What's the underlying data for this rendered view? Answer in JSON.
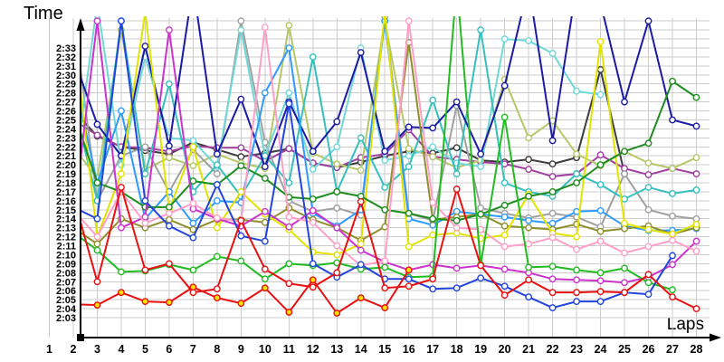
{
  "page": {
    "background": "#ffffff",
    "axis_color": "#000000",
    "grid_color": "#cccccc"
  },
  "chart_data": {
    "type": "line",
    "title": "",
    "xlabel": "Laps",
    "ylabel": "Time",
    "legend": "none",
    "grid": true,
    "values_unit": "seconds",
    "y_axis": {
      "min_label": "2:03",
      "max_label": "2:33",
      "min_seconds": 123,
      "max_seconds": 153,
      "tick_step_seconds": 1
    },
    "x_axis": {
      "min": 1,
      "max": 28,
      "tick_step": 1
    },
    "offscreen_threshold": 156.6,
    "y_ticks": [
      "2:03",
      "2:04",
      "2:05",
      "2:06",
      "2:07",
      "2:08",
      "2:09",
      "2:10",
      "2:11",
      "2:12",
      "2:13",
      "2:14",
      "2:15",
      "2:16",
      "2:17",
      "2:18",
      "2:19",
      "2:20",
      "2:21",
      "2:22",
      "2:23",
      "2:24",
      "2:25",
      "2:26",
      "2:27",
      "2:28",
      "2:29",
      "2:30",
      "2:31",
      "2:32",
      "2:33"
    ],
    "x_ticks": [
      "1",
      "2",
      "3",
      "4",
      "5",
      "6",
      "7",
      "8",
      "9",
      "10",
      "11",
      "12",
      "13",
      "14",
      "15",
      "16",
      "17",
      "18",
      "19",
      "20",
      "21",
      "22",
      "23",
      "24",
      "25",
      "26",
      "27",
      "28"
    ],
    "series": [
      {
        "name": "dark-gray",
        "color": "#3c3c3c",
        "marker_fill": "#ffffff",
        "values": [
          158,
          146,
          143.2,
          142,
          141.6,
          141.2,
          142.5,
          141.7,
          140.9,
          141.3,
          141.8,
          140.2,
          139.7,
          140.3,
          141.0,
          141.5,
          141.3,
          141.9,
          140.5,
          140.3,
          140.6,
          140.1,
          140.8,
          150.6,
          139.0
        ]
      },
      {
        "name": "purple",
        "color": "#a040a0",
        "marker_fill": "#ffffff",
        "values": [
          151,
          145,
          143.3,
          142,
          141.9,
          141.5,
          142.1,
          141.9,
          141.9,
          140.4,
          141.8,
          140.2,
          139.7,
          140.8,
          141.2,
          143.9,
          140.9,
          140.6,
          140.3,
          140.1,
          139.5,
          138.7,
          139.0,
          141.1,
          139.6,
          138.9,
          139.6,
          139.0
        ]
      },
      {
        "name": "khaki-green",
        "color": "#b5c767",
        "marker_fill": "#ffffff",
        "values": [
          136,
          142,
          138.5,
          155,
          139.5,
          140.8,
          139.9,
          141.2,
          140.2,
          139.6,
          155.5,
          141.3,
          140.1,
          139.4,
          156,
          141.8,
          140.9,
          139.7,
          140.5,
          149.5,
          143,
          144.9,
          141.2,
          139.9,
          141.5,
          140.2,
          139.6,
          140.8
        ]
      },
      {
        "name": "gray",
        "color": "#a0a0a0",
        "marker_fill": "#ffffff",
        "values": [
          142,
          157,
          136,
          141,
          142,
          137,
          141.7,
          139,
          156,
          142.5,
          136,
          134.8,
          135.2,
          134.4,
          156.5,
          134.6,
          133.8,
          146.6,
          135.2,
          134.6,
          134.1,
          134.6,
          134.2,
          133.1,
          139,
          135,
          134.3,
          134.0
        ]
      },
      {
        "name": "light-cyan",
        "color": "#6fd8d8",
        "marker_fill": "#ffffff",
        "values": [
          153.5,
          138,
          158,
          140,
          152,
          143,
          142.7,
          139.8,
          155,
          141,
          148,
          139.5,
          142,
          153,
          140.5,
          141,
          142,
          140.2,
          139.8,
          154,
          153.8,
          152.4,
          148.2,
          147.8
        ]
      },
      {
        "name": "cyan",
        "color": "#35bfbf",
        "marker_fill": "#ffffff",
        "values": [
          153,
          147,
          136,
          156,
          139,
          149,
          137,
          140,
          136.5,
          141,
          138,
          152,
          137,
          143,
          137.5,
          139.8,
          147.2,
          139,
          155,
          138,
          137,
          136.5,
          139,
          137.8,
          136.2,
          137.5,
          136.8,
          137.2
        ]
      },
      {
        "name": "navy-blue",
        "color": "#1a1aa6",
        "marker_fill": "#ffffff",
        "values": [
          160,
          152,
          144.5,
          141,
          153.2,
          142.1,
          160,
          141.2,
          147.3,
          139.8,
          147,
          141.5,
          144.8,
          152.5,
          141.5,
          144.2,
          144.1,
          147,
          141.2,
          148.8,
          160,
          142.7,
          160,
          158,
          147,
          156,
          145,
          144.3
        ]
      },
      {
        "name": "sky-blue",
        "color": "#2e9afe",
        "marker_fill": "#ffffff",
        "values": [
          146.4,
          150,
          138,
          146,
          134,
          137,
          133.5,
          136,
          135.8,
          148,
          153,
          134.6,
          133.2,
          135,
          156,
          134,
          133.3,
          134.8,
          134.5,
          134.2,
          133.8,
          133.5,
          134.8,
          134.9,
          133.2,
          132.7,
          132.7,
          132.9
        ]
      },
      {
        "name": "olive",
        "color": "#8f8f2e",
        "marker_fill": "#ffffff",
        "values": [
          135.5,
          133,
          131.2,
          134,
          133,
          133.9,
          132.8,
          133.9,
          133.9,
          133.6,
          135.2,
          133.9,
          133.0,
          131.6,
          133.1,
          153.6,
          133.9,
          134.2,
          134.5,
          133.2,
          133.0,
          132.8,
          133.4,
          132.6,
          132.9,
          133.2,
          132.3,
          133.0
        ]
      },
      {
        "name": "yellow",
        "color": "#e3e300",
        "marker_fill": "#ffffff",
        "values": [
          150,
          155,
          132,
          139,
          157,
          135,
          142,
          133,
          137,
          134.5,
          132.8,
          130.3,
          130.0,
          131.2,
          157,
          130.9,
          132.2,
          132.4,
          131.8,
          132.2,
          136.7,
          132.4,
          132.0,
          153.7,
          133.5,
          132.8,
          132.3,
          133.4
        ]
      },
      {
        "name": "dark-green",
        "color": "#1e8c1e",
        "marker_fill": "#ffffff",
        "values": [
          152,
          146,
          138,
          137,
          135.3,
          135.3,
          138.2,
          137.8,
          139.9,
          138.5,
          136.4,
          136.2,
          137,
          136.5,
          135,
          134.6,
          134,
          133.8,
          134.5,
          135.5,
          136.5,
          137,
          138,
          140,
          141.5,
          142.4,
          149.3,
          147.5
        ]
      },
      {
        "name": "magenta",
        "color": "#cc33cc",
        "marker_fill": "#ffffff",
        "values": [
          135,
          133.9,
          156,
          133,
          134.2,
          155,
          135.1,
          134.0,
          133.2,
          134.8,
          133.1,
          134.9,
          133.0,
          130.5,
          129.2,
          128.3,
          128.9,
          128.5,
          128.8,
          128.4,
          128.0,
          127.3,
          127.2,
          127.1,
          126.9,
          127.5,
          128.9,
          131.5
        ]
      },
      {
        "name": "pink",
        "color": "#ff9fc8",
        "marker_fill": "#ffffff",
        "values": [
          139.3,
          135,
          132,
          137,
          133.5,
          134.6,
          135.7,
          134.1,
          133.7,
          155.3,
          134.2,
          133.6,
          131.0,
          128.8,
          129.3,
          156,
          135.8,
          133.0,
          132.8,
          130.9,
          131.2,
          131.9,
          130.6,
          131.5,
          130.2,
          130.9,
          131.6,
          130.4
        ]
      },
      {
        "name": "bright-green",
        "color": "#22bb22",
        "marker_fill": "#ffffff",
        "values": [
          141,
          132.5,
          130.5,
          128.1,
          128.2,
          128.9,
          128.3,
          129.8,
          129.3,
          127.3,
          129.0,
          128.8,
          129.1,
          128.4,
          128.6,
          127.5,
          127.6,
          160,
          128.9,
          145.3,
          128.6,
          128.7,
          128.3,
          128.0,
          128.5,
          126.9,
          126.1
        ]
      },
      {
        "name": "royal-blue",
        "color": "#2244dd",
        "marker_fill": "#ffffff",
        "values": [
          155,
          135.3,
          134,
          156,
          136,
          133.2,
          131.9,
          137.8,
          132.1,
          131.5,
          146.8,
          129,
          127.5,
          128.9,
          127.3,
          127.3,
          126.2,
          126.3,
          127.4,
          126.5,
          125.3,
          124.1,
          124.8,
          124.8,
          125.8,
          125.6,
          129.9
        ]
      },
      {
        "name": "red",
        "color": "#e81010",
        "marker_fill": "#ffffff",
        "values": [
          130,
          136.5,
          127,
          137.5,
          128.3,
          129,
          125.8,
          126.2,
          133.8,
          128.4,
          126.8,
          126.4,
          128,
          135.9,
          126.3,
          126.5,
          127.3,
          137.3,
          128.8,
          125.5,
          127.2,
          125.8,
          125.8,
          125.9,
          125.8,
          127.8,
          125.3,
          124.0
        ]
      },
      {
        "name": "red-leader",
        "color": "#e81010",
        "marker_fill": "#ffe100",
        "values": [
          128.5,
          124.5,
          124.4,
          125.8,
          124.8,
          124.7,
          126.4,
          125.2,
          124.6,
          126.3,
          123.6,
          127.2,
          123.5,
          125.2,
          124.1,
          128.3
        ]
      }
    ]
  }
}
